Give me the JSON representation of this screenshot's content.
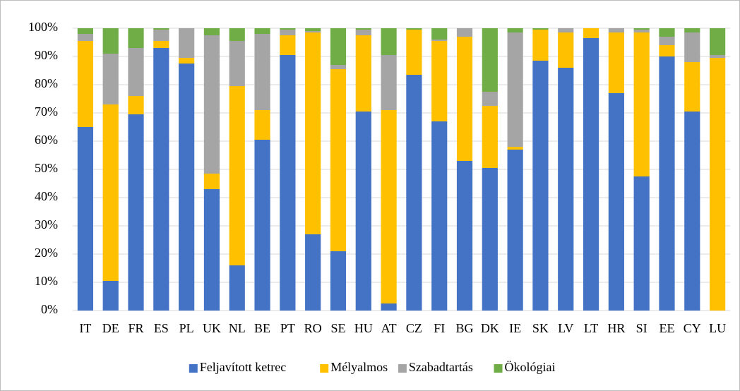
{
  "chart_data": {
    "type": "stacked_bar",
    "categories": [
      "IT",
      "DE",
      "FR",
      "ES",
      "PL",
      "UK",
      "NL",
      "BE",
      "PT",
      "RO",
      "SE",
      "HU",
      "AT",
      "CZ",
      "FI",
      "BG",
      "DK",
      "IE",
      "SK",
      "LV",
      "LT",
      "HR",
      "SI",
      "EE",
      "CY",
      "LU"
    ],
    "series": [
      {
        "name": "Feljavított ketrec",
        "color": "#4472c4",
        "values": [
          65,
          10.5,
          69.5,
          93,
          87.5,
          43,
          16,
          60.5,
          90.5,
          27,
          21,
          70.5,
          2.5,
          83.5,
          67,
          53,
          50.5,
          57,
          88.5,
          86,
          96.5,
          77,
          47.5,
          90,
          70.5,
          0
        ]
      },
      {
        "name": "Mélyalmos",
        "color": "#ffc000",
        "values": [
          30.5,
          62.5,
          6.5,
          2.5,
          2,
          5.5,
          63.5,
          10.5,
          7,
          71.5,
          64.5,
          27,
          68.5,
          16,
          28.5,
          44,
          22,
          1,
          11,
          12.5,
          3.5,
          21.5,
          51,
          4,
          17.5,
          89.5
        ]
      },
      {
        "name": "Szabadtartás",
        "color": "#a5a5a5",
        "values": [
          2.5,
          18,
          17,
          4,
          10.5,
          49,
          16,
          27,
          2,
          0.5,
          1.5,
          2,
          19.5,
          0,
          0.5,
          3,
          5,
          40.5,
          0,
          1.5,
          0,
          1.5,
          1,
          3,
          10.5,
          1
        ]
      },
      {
        "name": "Ökológiai",
        "color": "#70ad47",
        "values": [
          2,
          9,
          7,
          0.5,
          0,
          2.5,
          4.5,
          2,
          0.5,
          1,
          13,
          0.5,
          9.5,
          0.5,
          4,
          0,
          22.5,
          1.5,
          0.5,
          0,
          0,
          0,
          0.5,
          3,
          1.5,
          9.5
        ]
      }
    ],
    "ylim": [
      0,
      100
    ],
    "yticks": [
      {
        "value": 0,
        "label": "0%"
      },
      {
        "value": 10,
        "label": "10%"
      },
      {
        "value": 20,
        "label": "20%"
      },
      {
        "value": 30,
        "label": "30%"
      },
      {
        "value": 40,
        "label": "40%"
      },
      {
        "value": 50,
        "label": "50%"
      },
      {
        "value": 60,
        "label": "60%"
      },
      {
        "value": 70,
        "label": "70%"
      },
      {
        "value": 80,
        "label": "80%"
      },
      {
        "value": 90,
        "label": "90%"
      },
      {
        "value": 100,
        "label": "100%"
      }
    ],
    "grid": true,
    "legend": "bottom"
  }
}
